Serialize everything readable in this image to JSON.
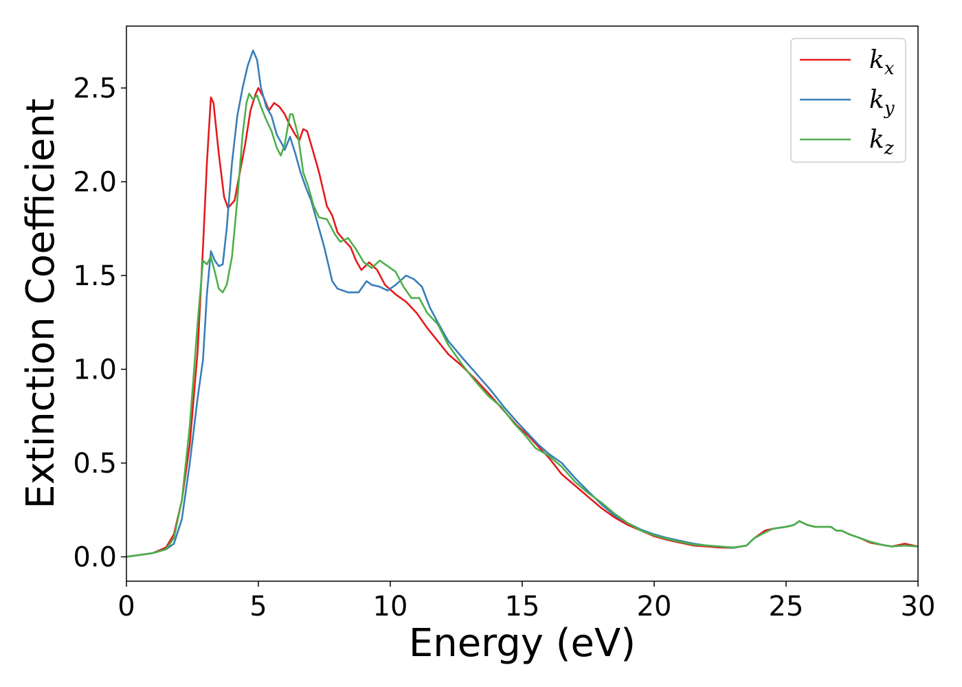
{
  "chart_data": {
    "type": "line",
    "title": "",
    "xlabel": "Energy (eV)",
    "ylabel": "Extinction Coefficient",
    "xlim": [
      0,
      30
    ],
    "ylim": [
      -0.13,
      2.83
    ],
    "xticks": [
      0,
      5,
      10,
      15,
      20,
      25,
      30
    ],
    "xtick_labels": [
      "0",
      "5",
      "10",
      "15",
      "20",
      "25",
      "30"
    ],
    "yticks": [
      0.0,
      0.5,
      1.0,
      1.5,
      2.0,
      2.5
    ],
    "ytick_labels": [
      "0.0",
      "0.5",
      "1.0",
      "1.5",
      "2.0",
      "2.5"
    ],
    "grid": false,
    "legend": {
      "position": "top-right"
    },
    "series": [
      {
        "name": "k_x",
        "label_base": "k",
        "label_sub": "x",
        "color": "#e41a1c",
        "points": [
          [
            0,
            0
          ],
          [
            0.5,
            0.01
          ],
          [
            1.0,
            0.02
          ],
          [
            1.5,
            0.05
          ],
          [
            1.8,
            0.12
          ],
          [
            2.1,
            0.3
          ],
          [
            2.4,
            0.6
          ],
          [
            2.7,
            1.1
          ],
          [
            2.9,
            1.65
          ],
          [
            3.05,
            2.1
          ],
          [
            3.2,
            2.45
          ],
          [
            3.3,
            2.42
          ],
          [
            3.5,
            2.15
          ],
          [
            3.7,
            1.92
          ],
          [
            3.85,
            1.86
          ],
          [
            4.1,
            1.9
          ],
          [
            4.3,
            2.05
          ],
          [
            4.5,
            2.2
          ],
          [
            4.7,
            2.38
          ],
          [
            4.9,
            2.47
          ],
          [
            5.0,
            2.5
          ],
          [
            5.2,
            2.45
          ],
          [
            5.4,
            2.38
          ],
          [
            5.6,
            2.42
          ],
          [
            5.8,
            2.4
          ],
          [
            6.0,
            2.36
          ],
          [
            6.2,
            2.3
          ],
          [
            6.4,
            2.25
          ],
          [
            6.55,
            2.22
          ],
          [
            6.7,
            2.28
          ],
          [
            6.85,
            2.27
          ],
          [
            7.1,
            2.15
          ],
          [
            7.3,
            2.05
          ],
          [
            7.6,
            1.87
          ],
          [
            7.8,
            1.82
          ],
          [
            8.0,
            1.73
          ],
          [
            8.3,
            1.68
          ],
          [
            8.5,
            1.65
          ],
          [
            8.7,
            1.58
          ],
          [
            8.9,
            1.53
          ],
          [
            9.2,
            1.57
          ],
          [
            9.5,
            1.53
          ],
          [
            9.8,
            1.45
          ],
          [
            10.2,
            1.4
          ],
          [
            10.6,
            1.36
          ],
          [
            11.0,
            1.3
          ],
          [
            11.4,
            1.22
          ],
          [
            11.8,
            1.15
          ],
          [
            12.2,
            1.08
          ],
          [
            12.7,
            1.02
          ],
          [
            13.2,
            0.95
          ],
          [
            13.8,
            0.86
          ],
          [
            14.3,
            0.78
          ],
          [
            14.8,
            0.7
          ],
          [
            15.2,
            0.65
          ],
          [
            15.6,
            0.59
          ],
          [
            16.0,
            0.53
          ],
          [
            16.5,
            0.44
          ],
          [
            17.0,
            0.38
          ],
          [
            17.5,
            0.32
          ],
          [
            18.0,
            0.26
          ],
          [
            18.5,
            0.21
          ],
          [
            19.0,
            0.17
          ],
          [
            19.5,
            0.14
          ],
          [
            20.0,
            0.11
          ],
          [
            20.5,
            0.09
          ],
          [
            21.0,
            0.075
          ],
          [
            21.5,
            0.06
          ],
          [
            22.0,
            0.055
          ],
          [
            22.5,
            0.05
          ],
          [
            23.0,
            0.048
          ],
          [
            23.5,
            0.06
          ],
          [
            23.8,
            0.1
          ],
          [
            24.2,
            0.14
          ],
          [
            24.5,
            0.15
          ],
          [
            25.0,
            0.16
          ],
          [
            25.3,
            0.17
          ],
          [
            25.5,
            0.19
          ],
          [
            25.8,
            0.17
          ],
          [
            26.1,
            0.16
          ],
          [
            26.4,
            0.16
          ],
          [
            26.7,
            0.16
          ],
          [
            26.9,
            0.14
          ],
          [
            27.1,
            0.14
          ],
          [
            27.4,
            0.12
          ],
          [
            27.8,
            0.1
          ],
          [
            28.2,
            0.075
          ],
          [
            28.6,
            0.065
          ],
          [
            29.0,
            0.055
          ],
          [
            29.5,
            0.07
          ],
          [
            30.0,
            0.055
          ]
        ]
      },
      {
        "name": "k_y",
        "label_base": "k",
        "label_sub": "y",
        "color": "#377eb8",
        "points": [
          [
            0,
            0
          ],
          [
            0.5,
            0.01
          ],
          [
            1.0,
            0.02
          ],
          [
            1.5,
            0.04
          ],
          [
            1.8,
            0.07
          ],
          [
            2.1,
            0.2
          ],
          [
            2.4,
            0.5
          ],
          [
            2.7,
            0.85
          ],
          [
            2.9,
            1.05
          ],
          [
            3.05,
            1.4
          ],
          [
            3.2,
            1.63
          ],
          [
            3.35,
            1.58
          ],
          [
            3.5,
            1.55
          ],
          [
            3.65,
            1.56
          ],
          [
            3.8,
            1.75
          ],
          [
            4.0,
            2.1
          ],
          [
            4.2,
            2.35
          ],
          [
            4.4,
            2.5
          ],
          [
            4.6,
            2.62
          ],
          [
            4.8,
            2.7
          ],
          [
            4.95,
            2.65
          ],
          [
            5.1,
            2.5
          ],
          [
            5.3,
            2.4
          ],
          [
            5.5,
            2.35
          ],
          [
            5.7,
            2.25
          ],
          [
            5.9,
            2.2
          ],
          [
            6.0,
            2.17
          ],
          [
            6.2,
            2.24
          ],
          [
            6.4,
            2.15
          ],
          [
            6.6,
            2.05
          ],
          [
            6.8,
            1.97
          ],
          [
            7.0,
            1.9
          ],
          [
            7.2,
            1.8
          ],
          [
            7.5,
            1.65
          ],
          [
            7.8,
            1.47
          ],
          [
            8.0,
            1.43
          ],
          [
            8.4,
            1.41
          ],
          [
            8.8,
            1.41
          ],
          [
            9.1,
            1.47
          ],
          [
            9.3,
            1.45
          ],
          [
            9.6,
            1.44
          ],
          [
            9.9,
            1.42
          ],
          [
            10.2,
            1.45
          ],
          [
            10.6,
            1.5
          ],
          [
            10.9,
            1.48
          ],
          [
            11.2,
            1.44
          ],
          [
            11.5,
            1.33
          ],
          [
            11.8,
            1.25
          ],
          [
            12.2,
            1.15
          ],
          [
            12.8,
            1.05
          ],
          [
            13.3,
            0.97
          ],
          [
            13.8,
            0.89
          ],
          [
            14.3,
            0.8
          ],
          [
            14.8,
            0.72
          ],
          [
            15.2,
            0.66
          ],
          [
            15.6,
            0.6
          ],
          [
            16.0,
            0.55
          ],
          [
            16.5,
            0.5
          ],
          [
            17.0,
            0.42
          ],
          [
            17.5,
            0.35
          ],
          [
            18.0,
            0.28
          ],
          [
            18.5,
            0.22
          ],
          [
            19.0,
            0.18
          ],
          [
            19.5,
            0.145
          ],
          [
            20.0,
            0.12
          ],
          [
            20.5,
            0.1
          ],
          [
            21.0,
            0.085
          ],
          [
            21.5,
            0.07
          ],
          [
            22.0,
            0.06
          ],
          [
            22.5,
            0.055
          ],
          [
            23.0,
            0.048
          ],
          [
            23.5,
            0.06
          ],
          [
            23.8,
            0.1
          ],
          [
            24.2,
            0.13
          ],
          [
            24.5,
            0.15
          ],
          [
            25.0,
            0.16
          ],
          [
            25.3,
            0.17
          ],
          [
            25.5,
            0.19
          ],
          [
            25.8,
            0.17
          ],
          [
            26.1,
            0.16
          ],
          [
            26.4,
            0.16
          ],
          [
            26.7,
            0.16
          ],
          [
            26.9,
            0.14
          ],
          [
            27.1,
            0.14
          ],
          [
            27.4,
            0.12
          ],
          [
            27.8,
            0.1
          ],
          [
            28.2,
            0.08
          ],
          [
            28.6,
            0.065
          ],
          [
            29.0,
            0.055
          ],
          [
            29.5,
            0.06
          ],
          [
            30.0,
            0.055
          ]
        ]
      },
      {
        "name": "k_z",
        "label_base": "k",
        "label_sub": "z",
        "color": "#4daf4a",
        "points": [
          [
            0,
            0
          ],
          [
            0.5,
            0.01
          ],
          [
            1.0,
            0.02
          ],
          [
            1.5,
            0.04
          ],
          [
            1.8,
            0.1
          ],
          [
            2.1,
            0.3
          ],
          [
            2.4,
            0.7
          ],
          [
            2.7,
            1.25
          ],
          [
            2.9,
            1.58
          ],
          [
            3.05,
            1.56
          ],
          [
            3.2,
            1.6
          ],
          [
            3.35,
            1.52
          ],
          [
            3.5,
            1.43
          ],
          [
            3.65,
            1.41
          ],
          [
            3.8,
            1.45
          ],
          [
            4.0,
            1.6
          ],
          [
            4.2,
            1.9
          ],
          [
            4.4,
            2.25
          ],
          [
            4.55,
            2.42
          ],
          [
            4.65,
            2.47
          ],
          [
            4.8,
            2.44
          ],
          [
            4.95,
            2.46
          ],
          [
            5.1,
            2.4
          ],
          [
            5.3,
            2.33
          ],
          [
            5.5,
            2.27
          ],
          [
            5.7,
            2.18
          ],
          [
            5.85,
            2.14
          ],
          [
            6.0,
            2.2
          ],
          [
            6.2,
            2.36
          ],
          [
            6.3,
            2.36
          ],
          [
            6.5,
            2.25
          ],
          [
            6.7,
            2.05
          ],
          [
            6.9,
            1.97
          ],
          [
            7.1,
            1.87
          ],
          [
            7.3,
            1.81
          ],
          [
            7.6,
            1.8
          ],
          [
            7.9,
            1.72
          ],
          [
            8.1,
            1.68
          ],
          [
            8.4,
            1.7
          ],
          [
            8.7,
            1.64
          ],
          [
            9.0,
            1.57
          ],
          [
            9.3,
            1.54
          ],
          [
            9.6,
            1.58
          ],
          [
            9.9,
            1.55
          ],
          [
            10.2,
            1.52
          ],
          [
            10.5,
            1.44
          ],
          [
            10.8,
            1.38
          ],
          [
            11.1,
            1.38
          ],
          [
            11.4,
            1.3
          ],
          [
            11.8,
            1.24
          ],
          [
            12.2,
            1.13
          ],
          [
            12.7,
            1.03
          ],
          [
            13.2,
            0.94
          ],
          [
            13.7,
            0.86
          ],
          [
            14.2,
            0.8
          ],
          [
            14.7,
            0.71
          ],
          [
            15.1,
            0.65
          ],
          [
            15.5,
            0.58
          ],
          [
            16.0,
            0.54
          ],
          [
            16.5,
            0.48
          ],
          [
            17.0,
            0.4
          ],
          [
            17.5,
            0.34
          ],
          [
            18.0,
            0.29
          ],
          [
            18.5,
            0.23
          ],
          [
            19.0,
            0.18
          ],
          [
            19.5,
            0.14
          ],
          [
            20.0,
            0.115
          ],
          [
            20.5,
            0.095
          ],
          [
            21.0,
            0.08
          ],
          [
            21.5,
            0.065
          ],
          [
            22.0,
            0.06
          ],
          [
            22.5,
            0.055
          ],
          [
            23.0,
            0.05
          ],
          [
            23.5,
            0.06
          ],
          [
            23.8,
            0.1
          ],
          [
            24.2,
            0.13
          ],
          [
            24.5,
            0.15
          ],
          [
            25.0,
            0.16
          ],
          [
            25.3,
            0.17
          ],
          [
            25.5,
            0.19
          ],
          [
            25.8,
            0.17
          ],
          [
            26.1,
            0.16
          ],
          [
            26.4,
            0.16
          ],
          [
            26.7,
            0.16
          ],
          [
            26.9,
            0.14
          ],
          [
            27.1,
            0.14
          ],
          [
            27.4,
            0.12
          ],
          [
            27.8,
            0.1
          ],
          [
            28.2,
            0.08
          ],
          [
            28.6,
            0.065
          ],
          [
            29.0,
            0.055
          ],
          [
            29.5,
            0.06
          ],
          [
            30.0,
            0.055
          ]
        ]
      }
    ]
  }
}
